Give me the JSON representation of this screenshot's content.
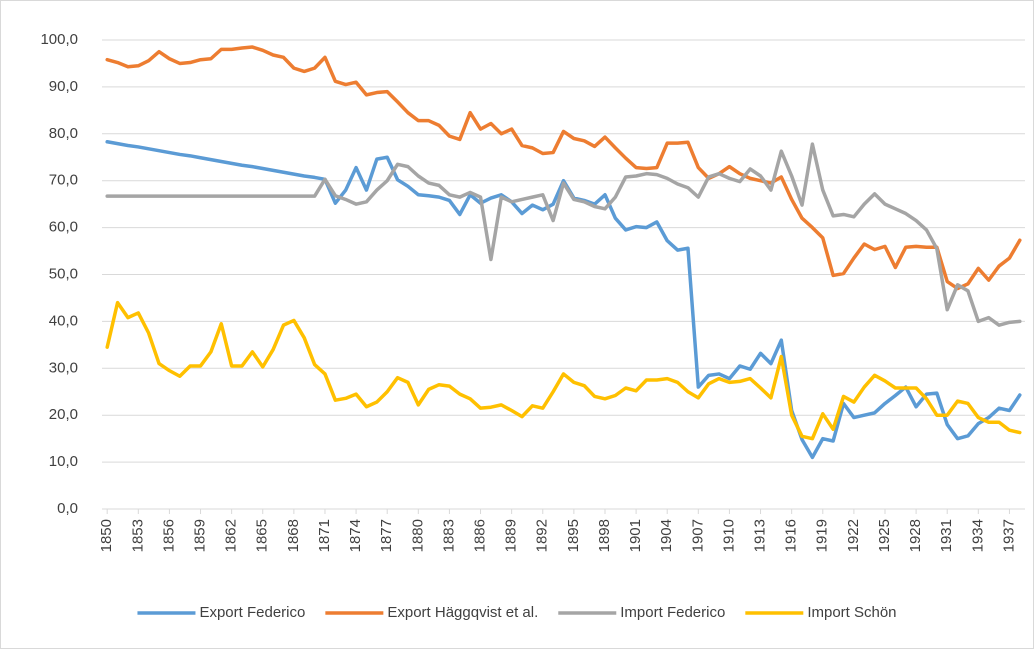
{
  "chart_data": {
    "type": "line",
    "x": [
      1850,
      1851,
      1852,
      1853,
      1854,
      1855,
      1856,
      1857,
      1858,
      1859,
      1860,
      1861,
      1862,
      1863,
      1864,
      1865,
      1866,
      1867,
      1868,
      1869,
      1870,
      1871,
      1872,
      1873,
      1874,
      1875,
      1876,
      1877,
      1878,
      1879,
      1880,
      1881,
      1882,
      1883,
      1884,
      1885,
      1886,
      1887,
      1888,
      1889,
      1890,
      1891,
      1892,
      1893,
      1894,
      1895,
      1896,
      1897,
      1898,
      1899,
      1900,
      1901,
      1902,
      1903,
      1904,
      1905,
      1906,
      1907,
      1908,
      1909,
      1910,
      1911,
      1912,
      1913,
      1914,
      1915,
      1916,
      1917,
      1918,
      1919,
      1920,
      1921,
      1922,
      1923,
      1924,
      1925,
      1926,
      1927,
      1928,
      1929,
      1930,
      1931,
      1932,
      1933,
      1934,
      1935,
      1936,
      1937,
      1938
    ],
    "xlim": [
      1849.5,
      1938.5
    ],
    "xticks": [
      1850,
      1853,
      1856,
      1859,
      1862,
      1865,
      1868,
      1871,
      1874,
      1877,
      1880,
      1883,
      1886,
      1889,
      1892,
      1895,
      1898,
      1901,
      1904,
      1907,
      1910,
      1913,
      1916,
      1919,
      1922,
      1925,
      1928,
      1931,
      1934,
      1937
    ],
    "ylim": [
      0,
      100
    ],
    "yticks": [
      {
        "value": 0,
        "label": "0,0"
      },
      {
        "value": 10,
        "label": "10,0"
      },
      {
        "value": 20,
        "label": "20,0"
      },
      {
        "value": 30,
        "label": "30,0"
      },
      {
        "value": 40,
        "label": "40,0"
      },
      {
        "value": 50,
        "label": "50,0"
      },
      {
        "value": 60,
        "label": "60,0"
      },
      {
        "value": 70,
        "label": "70,0"
      },
      {
        "value": 80,
        "label": "80,0"
      },
      {
        "value": 90,
        "label": "90,0"
      },
      {
        "value": 100,
        "label": "100,0"
      }
    ],
    "grid": true,
    "legend": "bottom",
    "series": [
      {
        "name": "Export Federico",
        "color": "#5b9bd5",
        "values": [
          78.3,
          77.9,
          77.5,
          77.2,
          76.8,
          76.4,
          76.0,
          75.6,
          75.3,
          74.9,
          74.5,
          74.1,
          73.7,
          73.3,
          73.0,
          72.6,
          72.2,
          71.8,
          71.4,
          71.0,
          70.7,
          70.3,
          65.2,
          68.0,
          72.8,
          68.0,
          74.6,
          75.0,
          70.2,
          68.8,
          67.0,
          66.8,
          66.5,
          65.8,
          62.8,
          67.0,
          65.2,
          66.3,
          67.0,
          65.5,
          63.0,
          64.8,
          63.8,
          65.0,
          70.0,
          66.3,
          65.8,
          65.0,
          67.0,
          62.0,
          59.5,
          60.2,
          60.0,
          61.2,
          57.2,
          55.2,
          55.6,
          26.0,
          28.5,
          28.8,
          27.8,
          30.5,
          29.8,
          33.2,
          31.0,
          36.0,
          21.0,
          14.8,
          11.0,
          15.0,
          14.5,
          22.5,
          19.5,
          20.0,
          20.5,
          22.5,
          24.2,
          26.0,
          21.8,
          24.5,
          24.7,
          18.0,
          15.0,
          15.6,
          18.2,
          19.5,
          21.5,
          21.0,
          24.3
        ]
      },
      {
        "name": "Export Häggqvist et al.",
        "color": "#ed7d31",
        "values": [
          95.8,
          95.2,
          94.3,
          94.5,
          95.6,
          97.5,
          96.0,
          95.0,
          95.2,
          95.8,
          96.0,
          98.0,
          98.0,
          98.3,
          98.5,
          97.8,
          96.8,
          96.3,
          94.0,
          93.3,
          94.0,
          96.3,
          91.2,
          90.5,
          91.0,
          88.3,
          88.8,
          89.0,
          86.8,
          84.5,
          82.8,
          82.8,
          81.8,
          79.5,
          78.8,
          84.5,
          81.0,
          82.2,
          80.0,
          81.0,
          77.5,
          77.0,
          75.8,
          76.0,
          80.5,
          79.0,
          78.5,
          77.3,
          79.3,
          77.0,
          74.8,
          72.8,
          72.6,
          72.8,
          78.0,
          78.0,
          78.2,
          72.8,
          70.5,
          71.5,
          73.0,
          71.5,
          70.5,
          70.0,
          69.5,
          70.8,
          66.0,
          62.0,
          60.0,
          57.8,
          49.8,
          50.2,
          53.5,
          56.5,
          55.3,
          56.0,
          51.5,
          55.8,
          56.0,
          55.8,
          55.8,
          48.5,
          47.0,
          48.0,
          51.3,
          48.8,
          51.8,
          53.5,
          57.3
        ]
      },
      {
        "name": "Import Federico",
        "color": "#a5a5a5",
        "values": [
          66.7,
          66.7,
          66.7,
          66.7,
          66.7,
          66.7,
          66.7,
          66.7,
          66.7,
          66.7,
          66.7,
          66.7,
          66.7,
          66.7,
          66.7,
          66.7,
          66.7,
          66.7,
          66.7,
          66.7,
          66.7,
          70.3,
          66.8,
          66.0,
          65.0,
          65.5,
          68.0,
          70.0,
          73.5,
          73.0,
          71.0,
          69.5,
          69.0,
          67.0,
          66.5,
          67.5,
          66.5,
          53.2,
          66.5,
          65.5,
          66.0,
          66.5,
          67.0,
          61.5,
          69.5,
          66.0,
          65.5,
          64.5,
          64.0,
          66.5,
          70.8,
          71.0,
          71.5,
          71.3,
          70.5,
          69.3,
          68.5,
          66.5,
          70.8,
          71.5,
          70.5,
          69.8,
          72.5,
          71.0,
          68.0,
          76.3,
          71.0,
          64.8,
          77.8,
          68.0,
          62.5,
          62.8,
          62.3,
          65.0,
          67.2,
          65.0,
          64.0,
          63.0,
          61.5,
          59.5,
          55.5,
          42.5,
          47.8,
          46.5,
          40.0,
          40.8,
          39.2,
          39.8,
          40.0
        ]
      },
      {
        "name": "Import Schön",
        "color": "#ffc000",
        "values": [
          34.5,
          44.0,
          40.8,
          41.8,
          37.5,
          31.0,
          29.5,
          28.3,
          30.5,
          30.5,
          33.5,
          39.5,
          30.5,
          30.5,
          33.5,
          30.3,
          34.0,
          39.2,
          40.2,
          36.5,
          30.8,
          28.8,
          23.2,
          23.6,
          24.5,
          21.8,
          22.8,
          25.0,
          28.0,
          27.0,
          22.2,
          25.5,
          26.5,
          26.2,
          24.5,
          23.5,
          21.5,
          21.7,
          22.2,
          21.0,
          19.7,
          22.0,
          21.5,
          25.0,
          28.8,
          27.0,
          26.3,
          24.0,
          23.5,
          24.2,
          25.8,
          25.2,
          27.5,
          27.5,
          27.8,
          27.0,
          25.0,
          23.7,
          26.7,
          27.8,
          27.0,
          27.2,
          27.8,
          25.8,
          23.7,
          32.5,
          20.0,
          15.5,
          15.0,
          20.3,
          17.0,
          24.0,
          22.8,
          26.0,
          28.5,
          27.3,
          25.8,
          25.8,
          25.8,
          23.5,
          20.0,
          20.0,
          23.0,
          22.5,
          19.5,
          18.5,
          18.5,
          16.8,
          16.3
        ]
      }
    ]
  }
}
